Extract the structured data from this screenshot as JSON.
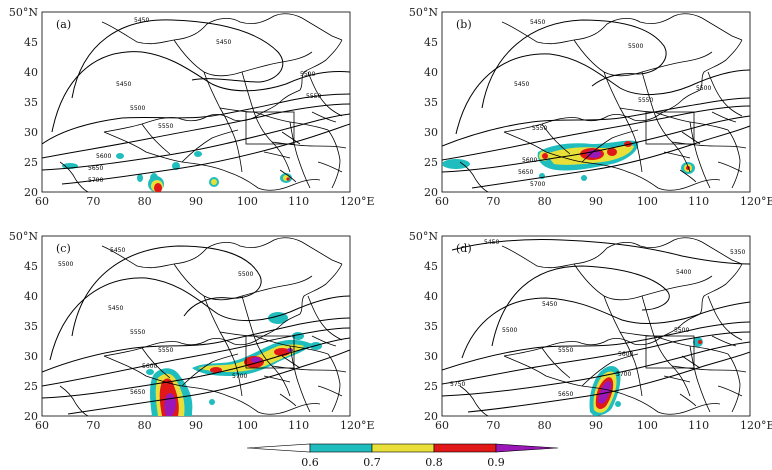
{
  "colors": {
    "c06": "#1fbdbd",
    "c07": "#e8e038",
    "c08": "#e01818",
    "c09": "#9a18b8",
    "frame": "#000000"
  },
  "axis": {
    "x_ticks": [
      "60",
      "70",
      "80",
      "90",
      "100",
      "110",
      "120°E"
    ],
    "y_ticks": [
      "20",
      "25",
      "30",
      "35",
      "40",
      "45",
      "50°N"
    ]
  },
  "panels": [
    {
      "id": "a",
      "label": "(a)",
      "contour_labels": [
        "5450",
        "5450",
        "5450",
        "5500",
        "5500",
        "5550",
        "5550",
        "5600",
        "5650",
        "5700"
      ]
    },
    {
      "id": "b",
      "label": "(b)",
      "contour_labels": [
        "5450",
        "5450",
        "5500",
        "5500",
        "5550",
        "5550",
        "5600",
        "5650",
        "5700"
      ]
    },
    {
      "id": "c",
      "label": "(c)",
      "contour_labels": [
        "5450",
        "5450",
        "5500",
        "5500",
        "5550",
        "5550",
        "5600",
        "5650",
        "5700"
      ]
    },
    {
      "id": "d",
      "label": "(d)",
      "contour_labels": [
        "5450",
        "5400",
        "5350",
        "5450",
        "5500",
        "5500",
        "5550",
        "5600",
        "5650",
        "5700",
        "5750"
      ]
    }
  ],
  "colorbar": {
    "labels": [
      "0.6",
      "0.7",
      "0.8",
      "0.9"
    ]
  }
}
